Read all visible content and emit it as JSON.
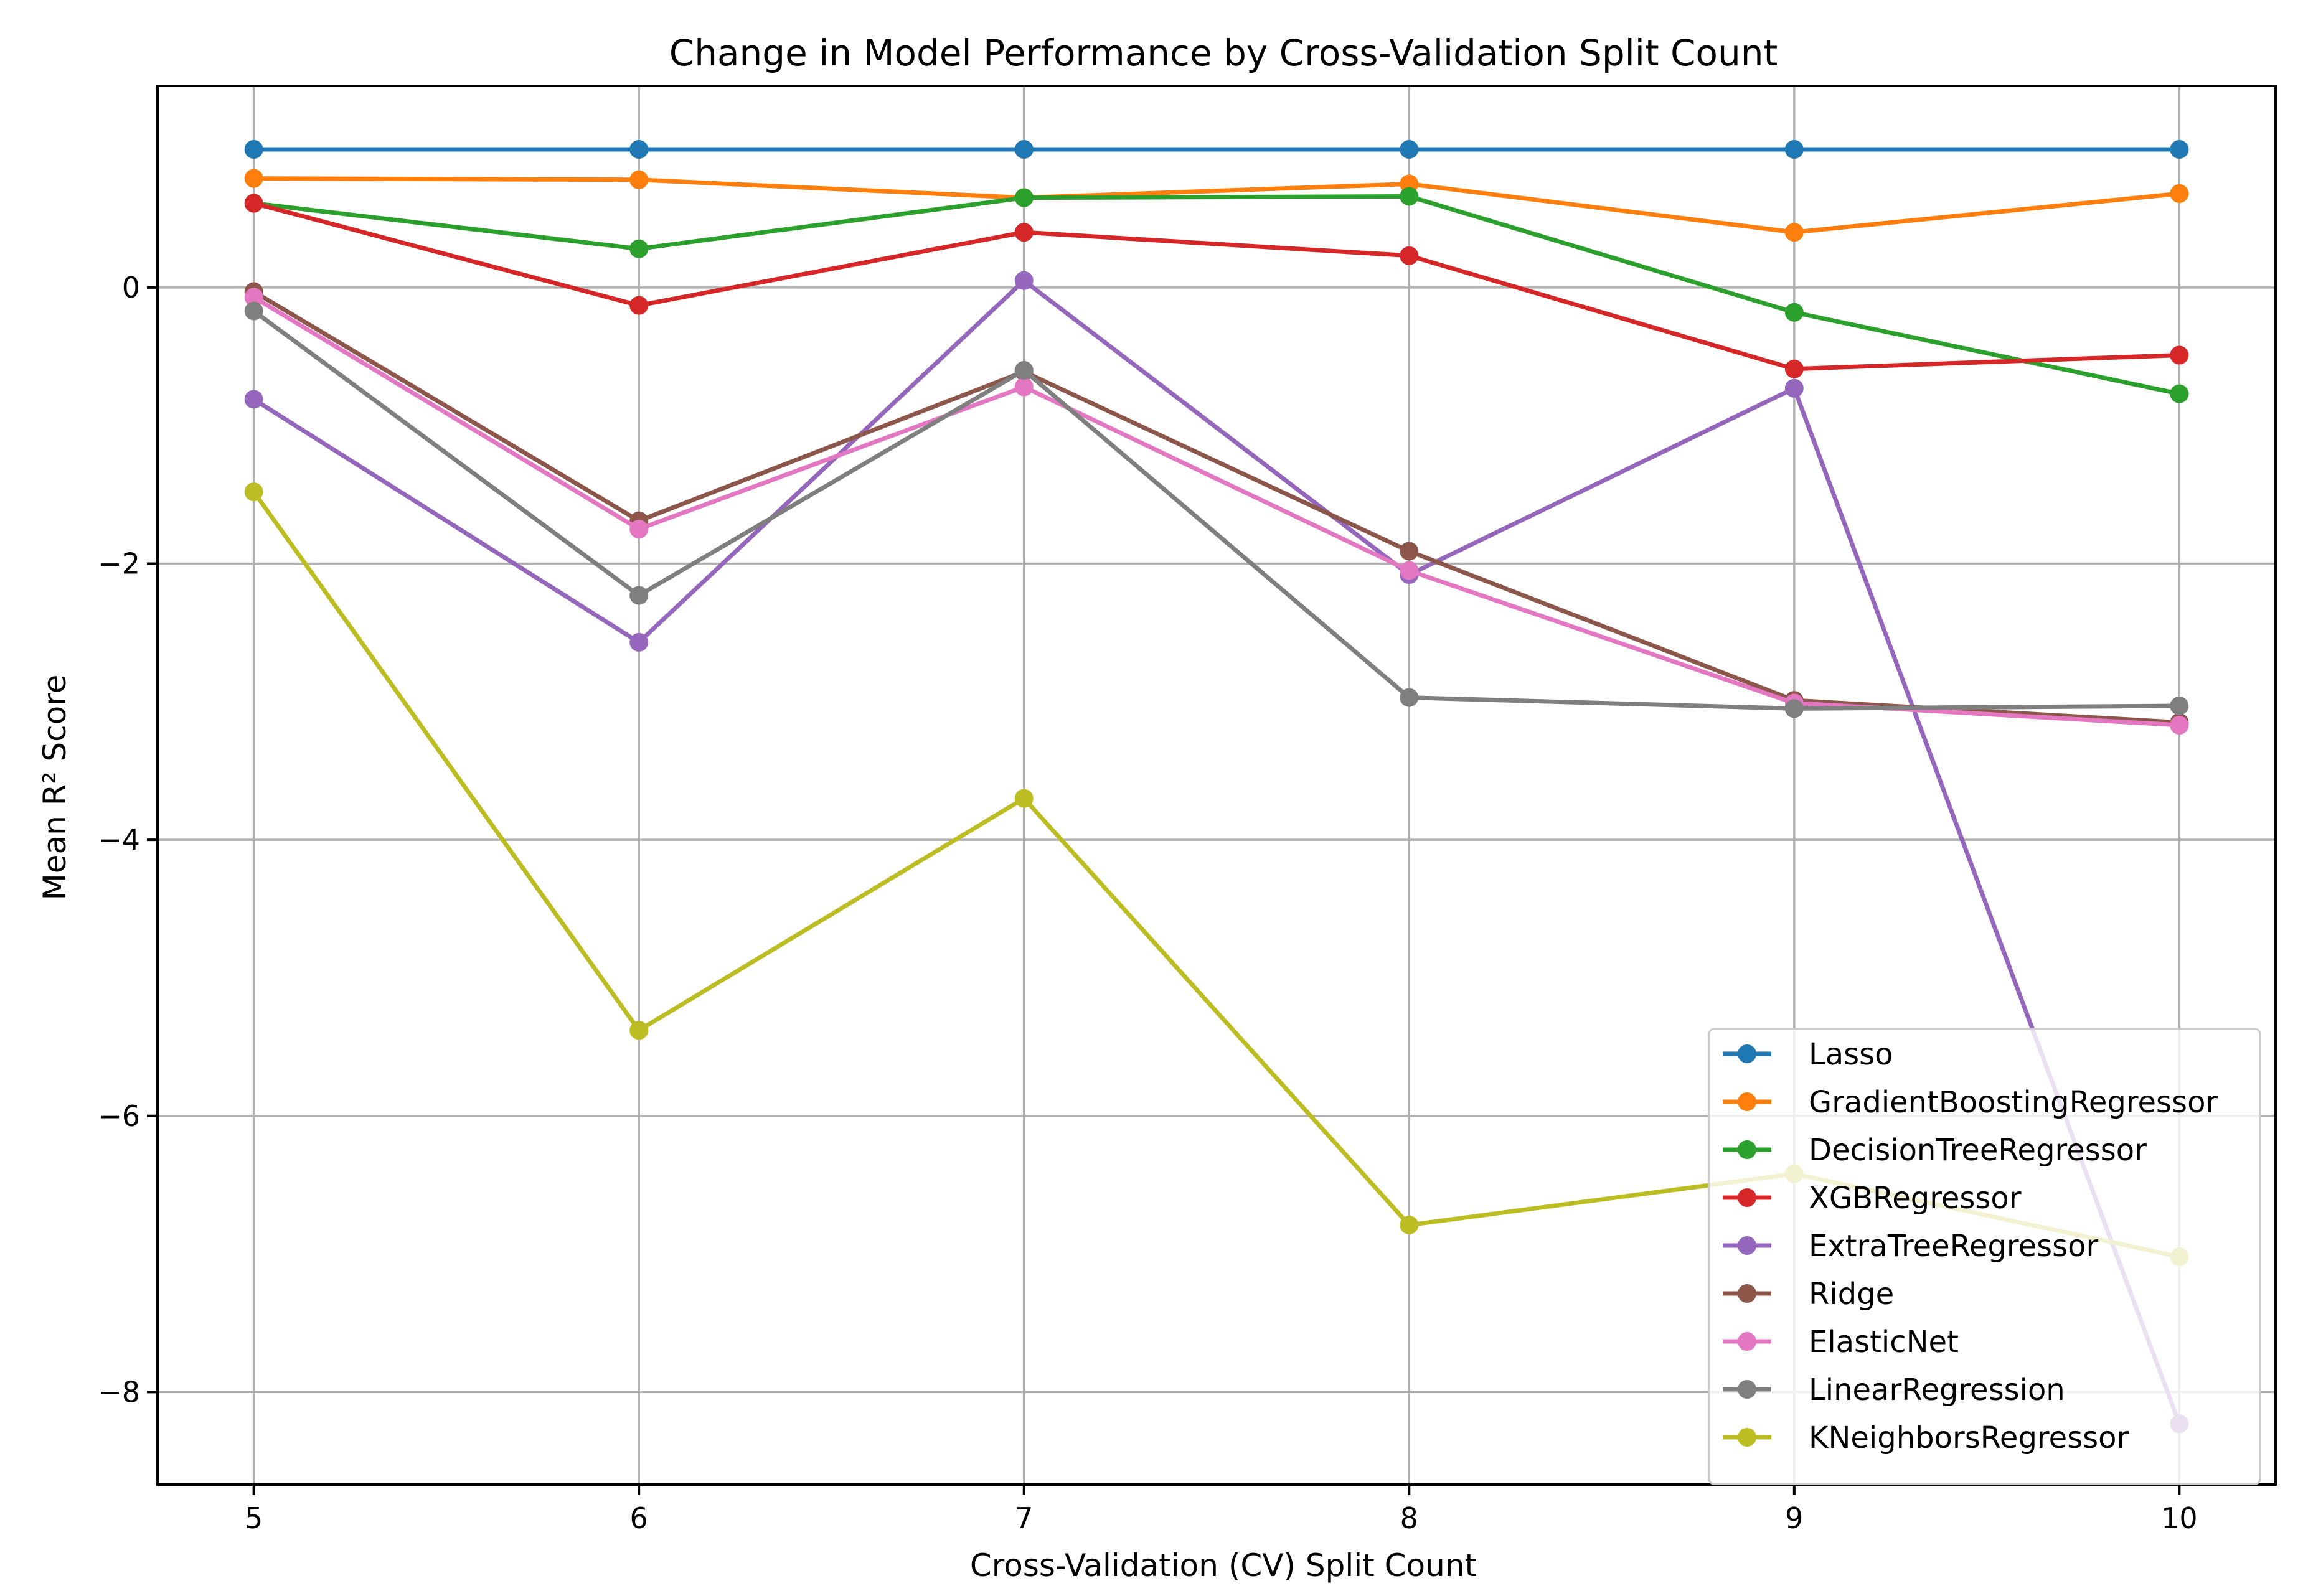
{
  "chart_data": {
    "type": "line",
    "title": "Change in Model Performance by Cross-Validation Split Count",
    "xlabel": "Cross-Validation (CV) Split Count",
    "ylabel": "Mean R² Score",
    "x": [
      5,
      6,
      7,
      8,
      9,
      10
    ],
    "x_ticks": [
      {
        "value": 5,
        "label": "5"
      },
      {
        "value": 6,
        "label": "6"
      },
      {
        "value": 7,
        "label": "7"
      },
      {
        "value": 8,
        "label": "8"
      },
      {
        "value": 9,
        "label": "9"
      },
      {
        "value": 10,
        "label": "10"
      }
    ],
    "y_ticks": [
      {
        "value": 0,
        "label": "0"
      },
      {
        "value": -2,
        "label": "−2"
      },
      {
        "value": -4,
        "label": "−4"
      },
      {
        "value": -6,
        "label": "−6"
      },
      {
        "value": -8,
        "label": "−8"
      }
    ],
    "xlim": [
      4.75,
      10.25
    ],
    "ylim": [
      -8.67,
      1.46
    ],
    "grid": true,
    "legend_position": "lower-right",
    "series": [
      {
        "name": "Lasso",
        "color": "#1f77b4",
        "values": [
          1.0,
          1.0,
          1.0,
          1.0,
          1.0,
          1.0
        ]
      },
      {
        "name": "GradientBoostingRegressor",
        "color": "#ff7f0e",
        "values": [
          0.79,
          0.78,
          0.65,
          0.75,
          0.4,
          0.68
        ]
      },
      {
        "name": "DecisionTreeRegressor",
        "color": "#2ca02c",
        "values": [
          0.61,
          0.28,
          0.65,
          0.66,
          -0.18,
          -0.77
        ]
      },
      {
        "name": "XGBRegressor",
        "color": "#d62728",
        "values": [
          0.61,
          -0.13,
          0.4,
          0.23,
          -0.59,
          -0.49
        ]
      },
      {
        "name": "ExtraTreeRegressor",
        "color": "#9467bd",
        "values": [
          -0.81,
          -2.57,
          0.05,
          -2.08,
          -0.73,
          -8.23
        ]
      },
      {
        "name": "Ridge",
        "color": "#8c564b",
        "values": [
          -0.03,
          -1.69,
          -0.61,
          -1.91,
          -2.99,
          -3.15
        ]
      },
      {
        "name": "ElasticNet",
        "color": "#e377c2",
        "values": [
          -0.07,
          -1.75,
          -0.72,
          -2.05,
          -3.01,
          -3.17
        ]
      },
      {
        "name": "LinearRegression",
        "color": "#7f7f7f",
        "values": [
          -0.17,
          -2.23,
          -0.6,
          -2.97,
          -3.05,
          -3.03
        ]
      },
      {
        "name": "KNeighborsRegressor",
        "color": "#bcbd22",
        "values": [
          -1.48,
          -5.38,
          -3.7,
          -6.79,
          -6.42,
          -7.02
        ]
      }
    ]
  }
}
